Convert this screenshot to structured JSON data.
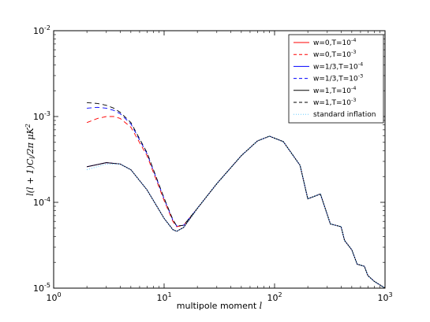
{
  "chart_data": {
    "type": "line",
    "title": "",
    "xlabel": "multipole moment l",
    "ylabel": "l(l+1)C_l/2π μK²",
    "xscale": "log",
    "yscale": "log",
    "xlim": [
      1,
      1000
    ],
    "ylim": [
      1e-05,
      0.01
    ],
    "grid": false,
    "legend_position": "top-right",
    "x_ticks": [
      {
        "value": 1,
        "base": "10",
        "exp": "0"
      },
      {
        "value": 10,
        "base": "10",
        "exp": "1"
      },
      {
        "value": 100,
        "base": "10",
        "exp": "2"
      },
      {
        "value": 1000,
        "base": "10",
        "exp": "3"
      }
    ],
    "y_ticks": [
      {
        "value": 1e-05,
        "base": "10",
        "exp": "-5"
      },
      {
        "value": 0.0001,
        "base": "10",
        "exp": "-4"
      },
      {
        "value": 0.001,
        "base": "10",
        "exp": "-3"
      },
      {
        "value": 0.01,
        "base": "10",
        "exp": "-2"
      }
    ],
    "series": [
      {
        "name": "w=0,T=10⁻⁴",
        "label_main": "w=0,T=10",
        "label_exp": "-4",
        "color": "#ff0000",
        "dash": "solid",
        "x": [
          2,
          3,
          4,
          5,
          7,
          10,
          12,
          13,
          15,
          20,
          30,
          50,
          70,
          90,
          120,
          170,
          200,
          260,
          320,
          400,
          430,
          500,
          560,
          650,
          700,
          800,
          1000
        ],
        "y": [
          0.00026,
          0.00029,
          0.00028,
          0.00024,
          0.00014,
          6.5e-05,
          4.8e-05,
          4.6e-05,
          5.1e-05,
          8.5e-05,
          0.000165,
          0.00035,
          0.00052,
          0.00059,
          0.00051,
          0.00027,
          0.00011,
          0.000125,
          5.6e-05,
          5.2e-05,
          3.6e-05,
          2.8e-05,
          1.9e-05,
          1.8e-05,
          1.4e-05,
          1.2e-05,
          1e-05
        ]
      },
      {
        "name": "w=0,T=10⁻³",
        "label_main": "w=0,T=10",
        "label_exp": "-3",
        "color": "#ff0000",
        "dash": "6,4",
        "x": [
          2,
          2.5,
          3,
          3.5,
          4,
          5,
          7,
          10,
          12,
          13,
          15,
          20,
          30,
          50,
          70,
          90,
          120,
          170,
          200,
          260,
          320,
          400,
          430,
          500,
          560,
          650,
          700,
          800,
          1000
        ],
        "y": [
          0.00085,
          0.00095,
          0.001,
          0.001,
          0.00095,
          0.00075,
          0.00035,
          0.000105,
          6e-05,
          5.2e-05,
          5.4e-05,
          8.5e-05,
          0.000165,
          0.00035,
          0.00052,
          0.00059,
          0.00051,
          0.00027,
          0.00011,
          0.000125,
          5.6e-05,
          5.2e-05,
          3.6e-05,
          2.8e-05,
          1.9e-05,
          1.8e-05,
          1.4e-05,
          1.2e-05,
          1e-05
        ]
      },
      {
        "name": "w=1/3,T=10⁻⁴",
        "label_main": "w=1/3,T=10",
        "label_exp": "-4",
        "color": "#0000ff",
        "dash": "solid",
        "x": [
          2,
          3,
          4,
          5,
          7,
          10,
          12,
          13,
          15,
          20,
          30,
          50,
          70,
          90,
          120,
          170,
          200,
          260,
          320,
          400,
          430,
          500,
          560,
          650,
          700,
          800,
          1000
        ],
        "y": [
          0.00026,
          0.00029,
          0.00028,
          0.00024,
          0.00014,
          6.5e-05,
          4.8e-05,
          4.6e-05,
          5.1e-05,
          8.5e-05,
          0.000165,
          0.00035,
          0.00052,
          0.00059,
          0.00051,
          0.00027,
          0.00011,
          0.000125,
          5.6e-05,
          5.2e-05,
          3.6e-05,
          2.8e-05,
          1.9e-05,
          1.8e-05,
          1.4e-05,
          1.2e-05,
          1e-05
        ]
      },
      {
        "name": "w=1/3,T=10⁻³",
        "label_main": "w=1/3,T=10",
        "label_exp": "-3",
        "color": "#0000ff",
        "dash": "6,4",
        "x": [
          2,
          2.5,
          3,
          3.5,
          4,
          5,
          7,
          10,
          12,
          13,
          15,
          20,
          30,
          50,
          70,
          90,
          120,
          170,
          200,
          260,
          320,
          400,
          430,
          500,
          560,
          650,
          700,
          800,
          1000
        ],
        "y": [
          0.00125,
          0.00128,
          0.00125,
          0.00118,
          0.00108,
          0.00082,
          0.00037,
          0.00011,
          6.2e-05,
          5.3e-05,
          5.4e-05,
          8.5e-05,
          0.000165,
          0.00035,
          0.00052,
          0.00059,
          0.00051,
          0.00027,
          0.00011,
          0.000125,
          5.6e-05,
          5.2e-05,
          3.6e-05,
          2.8e-05,
          1.9e-05,
          1.8e-05,
          1.4e-05,
          1.2e-05,
          1e-05
        ]
      },
      {
        "name": "w=1,T=10⁻⁴",
        "label_main": "w=1,T=10",
        "label_exp": "-4",
        "color": "#000000",
        "dash": "solid",
        "x": [
          2,
          3,
          4,
          5,
          7,
          10,
          12,
          13,
          15,
          20,
          30,
          50,
          70,
          90,
          120,
          170,
          200,
          260,
          320,
          400,
          430,
          500,
          560,
          650,
          700,
          800,
          1000
        ],
        "y": [
          0.00026,
          0.00029,
          0.00028,
          0.00024,
          0.00014,
          6.5e-05,
          4.8e-05,
          4.6e-05,
          5.1e-05,
          8.5e-05,
          0.000165,
          0.00035,
          0.00052,
          0.00059,
          0.00051,
          0.00027,
          0.00011,
          0.000125,
          5.6e-05,
          5.2e-05,
          3.6e-05,
          2.8e-05,
          1.9e-05,
          1.8e-05,
          1.4e-05,
          1.2e-05,
          1e-05
        ]
      },
      {
        "name": "w=1,T=10⁻³",
        "label_main": "w=1,T=10",
        "label_exp": "-3",
        "color": "#000000",
        "dash": "6,4",
        "x": [
          2,
          2.5,
          3,
          3.5,
          4,
          5,
          7,
          10,
          12,
          13,
          15,
          20,
          30,
          50,
          70,
          90,
          120,
          170,
          200,
          260,
          320,
          400,
          430,
          500,
          560,
          650,
          700,
          800,
          1000
        ],
        "y": [
          0.00145,
          0.00142,
          0.00135,
          0.00125,
          0.00112,
          0.00085,
          0.00038,
          0.000112,
          6.3e-05,
          5.3e-05,
          5.4e-05,
          8.5e-05,
          0.000165,
          0.00035,
          0.00052,
          0.00059,
          0.00051,
          0.00027,
          0.00011,
          0.000125,
          5.6e-05,
          5.2e-05,
          3.6e-05,
          2.8e-05,
          1.9e-05,
          1.8e-05,
          1.4e-05,
          1.2e-05,
          1e-05
        ]
      },
      {
        "name": "standard inflation",
        "label_main": "standard inflation",
        "label_exp": "",
        "color": "#66ccff",
        "dash": "1,2",
        "x": [
          2,
          3,
          4,
          5,
          7,
          10,
          12,
          13,
          15,
          20,
          30,
          50,
          70,
          90,
          120,
          170,
          200,
          260,
          320,
          400,
          430,
          500,
          560,
          650,
          700,
          800,
          1000
        ],
        "y": [
          0.00024,
          0.00028,
          0.00028,
          0.00024,
          0.00014,
          6.5e-05,
          4.8e-05,
          4.6e-05,
          5.1e-05,
          8.5e-05,
          0.000165,
          0.00035,
          0.00052,
          0.00059,
          0.00051,
          0.00027,
          0.00011,
          0.000125,
          5.6e-05,
          5.2e-05,
          3.6e-05,
          2.8e-05,
          1.9e-05,
          1.8e-05,
          1.4e-05,
          1.2e-05,
          1e-05
        ]
      }
    ]
  }
}
